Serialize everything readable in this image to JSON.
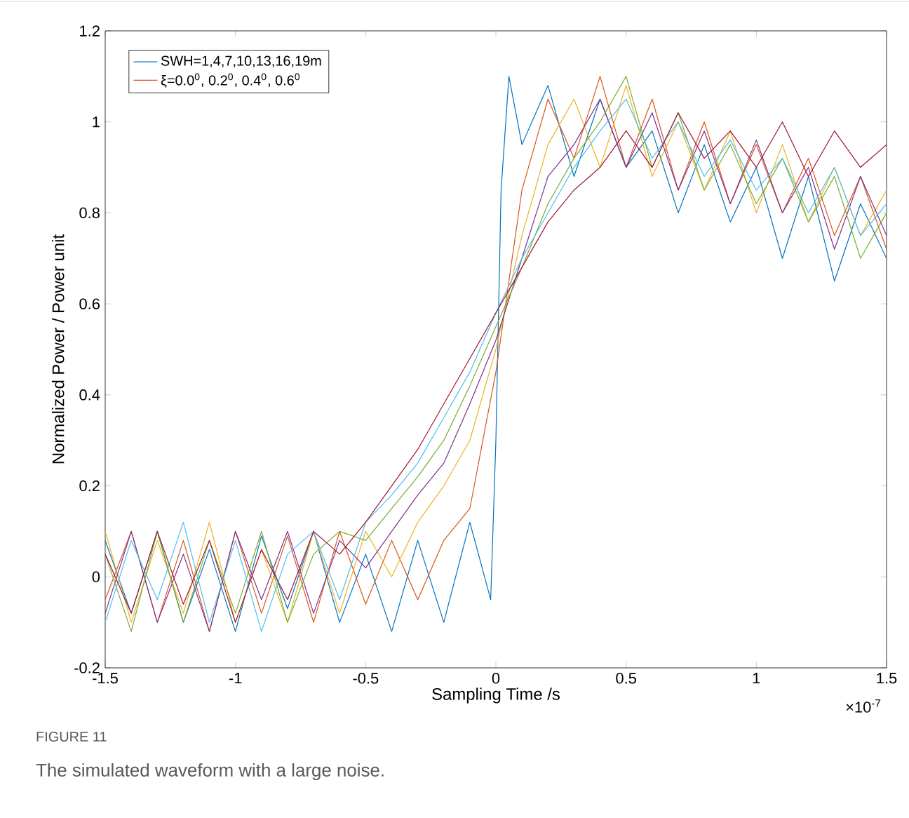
{
  "chart_data": {
    "type": "line",
    "xlabel": "Sampling Time /s",
    "ylabel": "Normalized Power / Power unit",
    "annotations": [
      "×10$^{-7}$",
      "FIGURE 11",
      "The simulated waveform with a large noise."
    ],
    "xlim": [
      -1.5,
      1.5
    ],
    "xticks": [
      -1.5,
      -1,
      -0.5,
      0,
      0.5,
      1,
      1.5
    ],
    "ylim": [
      -0.2,
      1.2
    ],
    "yticks": [
      -0.2,
      0,
      0.2,
      0.4,
      0.6,
      0.8,
      1,
      1.2
    ],
    "legend": "top left",
    "grid": false,
    "x": [
      -1.5,
      -1.4,
      -1.3,
      -1.2,
      -1.1,
      -1.0,
      -0.9,
      -0.8,
      -0.7,
      -0.6,
      -0.5,
      -0.4,
      -0.3,
      -0.2,
      -0.1,
      0.0,
      0.1,
      0.2,
      0.3,
      0.4,
      0.5,
      0.6,
      0.7,
      0.8,
      0.9,
      1.0,
      1.1,
      1.2,
      1.3,
      1.4,
      1.5
    ],
    "series": [
      {
        "name": "SWH=1,4,7,10,13,16,19m",
        "color": "#0072bd",
        "x": [
          -1.5,
          -1.4,
          -1.3,
          -1.2,
          -1.1,
          -1.0,
          -0.9,
          -0.8,
          -0.7,
          -0.6,
          -0.5,
          -0.4,
          -0.3,
          -0.2,
          -0.1,
          -0.02,
          0.0,
          0.02,
          0.05,
          0.1,
          0.2,
          0.3,
          0.4,
          0.5,
          0.6,
          0.7,
          0.8,
          0.9,
          1.0,
          1.1,
          1.2,
          1.3,
          1.4,
          1.5
        ],
        "values": [
          0.08,
          -0.08,
          0.1,
          -0.1,
          0.06,
          -0.12,
          0.09,
          -0.07,
          0.1,
          -0.1,
          0.05,
          -0.12,
          0.08,
          -0.1,
          0.12,
          -0.05,
          0.3,
          0.85,
          1.1,
          0.95,
          1.08,
          0.88,
          1.05,
          0.9,
          0.98,
          0.8,
          0.95,
          0.78,
          0.9,
          0.7,
          0.88,
          0.65,
          0.82,
          0.7
        ]
      },
      {
        "name": "ξ=0.0$^{0}$, 0.2$^{0}$, 0.4$^{0}$, 0.6$^{0}$",
        "color": "#d95319",
        "values": [
          -0.05,
          0.1,
          -0.1,
          0.08,
          -0.12,
          0.1,
          -0.08,
          0.09,
          -0.1,
          0.1,
          -0.06,
          0.08,
          -0.05,
          0.08,
          0.15,
          0.45,
          0.85,
          1.05,
          0.92,
          1.1,
          0.9,
          1.05,
          0.85,
          1.0,
          0.82,
          0.95,
          0.8,
          0.92,
          0.75,
          0.88,
          0.72
        ]
      },
      {
        "color": "#edb120",
        "values": [
          0.1,
          -0.1,
          0.08,
          -0.08,
          0.12,
          -0.1,
          0.06,
          -0.1,
          0.1,
          -0.08,
          0.1,
          0.0,
          0.12,
          0.2,
          0.3,
          0.5,
          0.75,
          0.95,
          1.05,
          0.9,
          1.08,
          0.88,
          1.0,
          0.85,
          0.98,
          0.8,
          0.95,
          0.78,
          0.9,
          0.75,
          0.85
        ]
      },
      {
        "color": "#7e2f8e",
        "values": [
          -0.08,
          0.1,
          -0.1,
          0.05,
          -0.12,
          0.1,
          -0.05,
          0.1,
          -0.08,
          0.08,
          0.02,
          0.1,
          0.18,
          0.25,
          0.38,
          0.52,
          0.7,
          0.88,
          0.95,
          1.05,
          0.9,
          1.02,
          0.85,
          0.98,
          0.82,
          0.96,
          0.8,
          0.9,
          0.72,
          0.88,
          0.75
        ]
      },
      {
        "color": "#77ac30",
        "values": [
          0.05,
          -0.12,
          0.1,
          -0.1,
          0.08,
          -0.08,
          0.1,
          -0.1,
          0.05,
          0.1,
          0.08,
          0.15,
          0.22,
          0.3,
          0.42,
          0.55,
          0.68,
          0.82,
          0.92,
          1.0,
          1.1,
          0.9,
          1.02,
          0.85,
          0.95,
          0.82,
          0.92,
          0.78,
          0.88,
          0.7,
          0.8
        ]
      },
      {
        "color": "#4dbeee",
        "values": [
          -0.1,
          0.08,
          -0.05,
          0.12,
          -0.1,
          0.08,
          -0.12,
          0.05,
          0.1,
          -0.05,
          0.12,
          0.18,
          0.25,
          0.35,
          0.45,
          0.58,
          0.7,
          0.8,
          0.9,
          0.98,
          1.05,
          0.92,
          1.0,
          0.88,
          0.96,
          0.85,
          0.92,
          0.8,
          0.9,
          0.75,
          0.82
        ]
      },
      {
        "color": "#a2142f",
        "values": [
          0.05,
          -0.08,
          0.1,
          -0.06,
          0.08,
          -0.1,
          0.06,
          -0.05,
          0.1,
          0.05,
          0.12,
          0.2,
          0.28,
          0.38,
          0.48,
          0.58,
          0.68,
          0.78,
          0.85,
          0.9,
          0.98,
          0.9,
          1.02,
          0.92,
          0.98,
          0.9,
          1.0,
          0.88,
          0.98,
          0.9,
          0.95
        ]
      }
    ]
  }
}
